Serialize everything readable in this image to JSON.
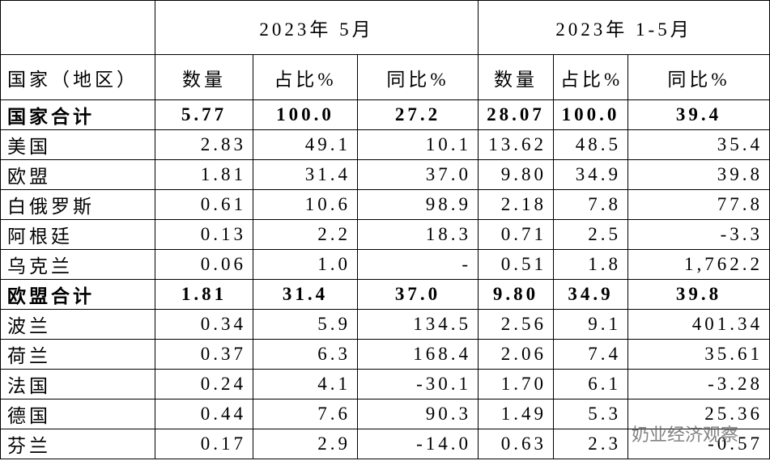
{
  "table": {
    "header": {
      "corner": "",
      "groups": [
        "2023年 5月",
        "2023年 1-5月"
      ]
    },
    "columns": [
      "国家（地区）",
      "数量",
      "占比%",
      "同比%",
      "数量",
      "占比%",
      "同比%"
    ],
    "rows": [
      {
        "bold": true,
        "cells": [
          "国家合计",
          "5.77",
          "100.0",
          "27.2",
          "28.07",
          "100.0",
          "39.4"
        ]
      },
      {
        "bold": false,
        "cells": [
          "美国",
          "2.83",
          "49.1",
          "10.1",
          "13.62",
          "48.5",
          "35.4"
        ]
      },
      {
        "bold": false,
        "cells": [
          "欧盟",
          "1.81",
          "31.4",
          "37.0",
          "9.80",
          "34.9",
          "39.8"
        ]
      },
      {
        "bold": false,
        "cells": [
          "白俄罗斯",
          "0.61",
          "10.6",
          "98.9",
          "2.18",
          "7.8",
          "77.8"
        ]
      },
      {
        "bold": false,
        "cells": [
          "阿根廷",
          "0.13",
          "2.2",
          "18.3",
          "0.71",
          "2.5",
          "-3.3"
        ]
      },
      {
        "bold": false,
        "cells": [
          "乌克兰",
          "0.06",
          "1.0",
          "-",
          "0.51",
          "1.8",
          "1,762.2"
        ]
      },
      {
        "bold": true,
        "cells": [
          "欧盟合计",
          "1.81",
          "31.4",
          "37.0",
          "9.80",
          "34.9",
          "39.8"
        ]
      },
      {
        "bold": false,
        "cells": [
          "波兰",
          "0.34",
          "5.9",
          "134.5",
          "2.56",
          "9.1",
          "401.34"
        ]
      },
      {
        "bold": false,
        "cells": [
          "荷兰",
          "0.37",
          "6.3",
          "168.4",
          "2.06",
          "7.4",
          "35.61"
        ]
      },
      {
        "bold": false,
        "cells": [
          "法国",
          "0.24",
          "4.1",
          "-30.1",
          "1.70",
          "6.1",
          "-3.28"
        ]
      },
      {
        "bold": false,
        "cells": [
          "德国",
          "0.44",
          "7.6",
          "90.3",
          "1.49",
          "5.3",
          "25.36"
        ]
      },
      {
        "bold": false,
        "cells": [
          "芬兰",
          "0.17",
          "2.9",
          "-14.0",
          "0.63",
          "2.3",
          "-0.57"
        ]
      }
    ]
  },
  "watermark": "奶业经济观察"
}
